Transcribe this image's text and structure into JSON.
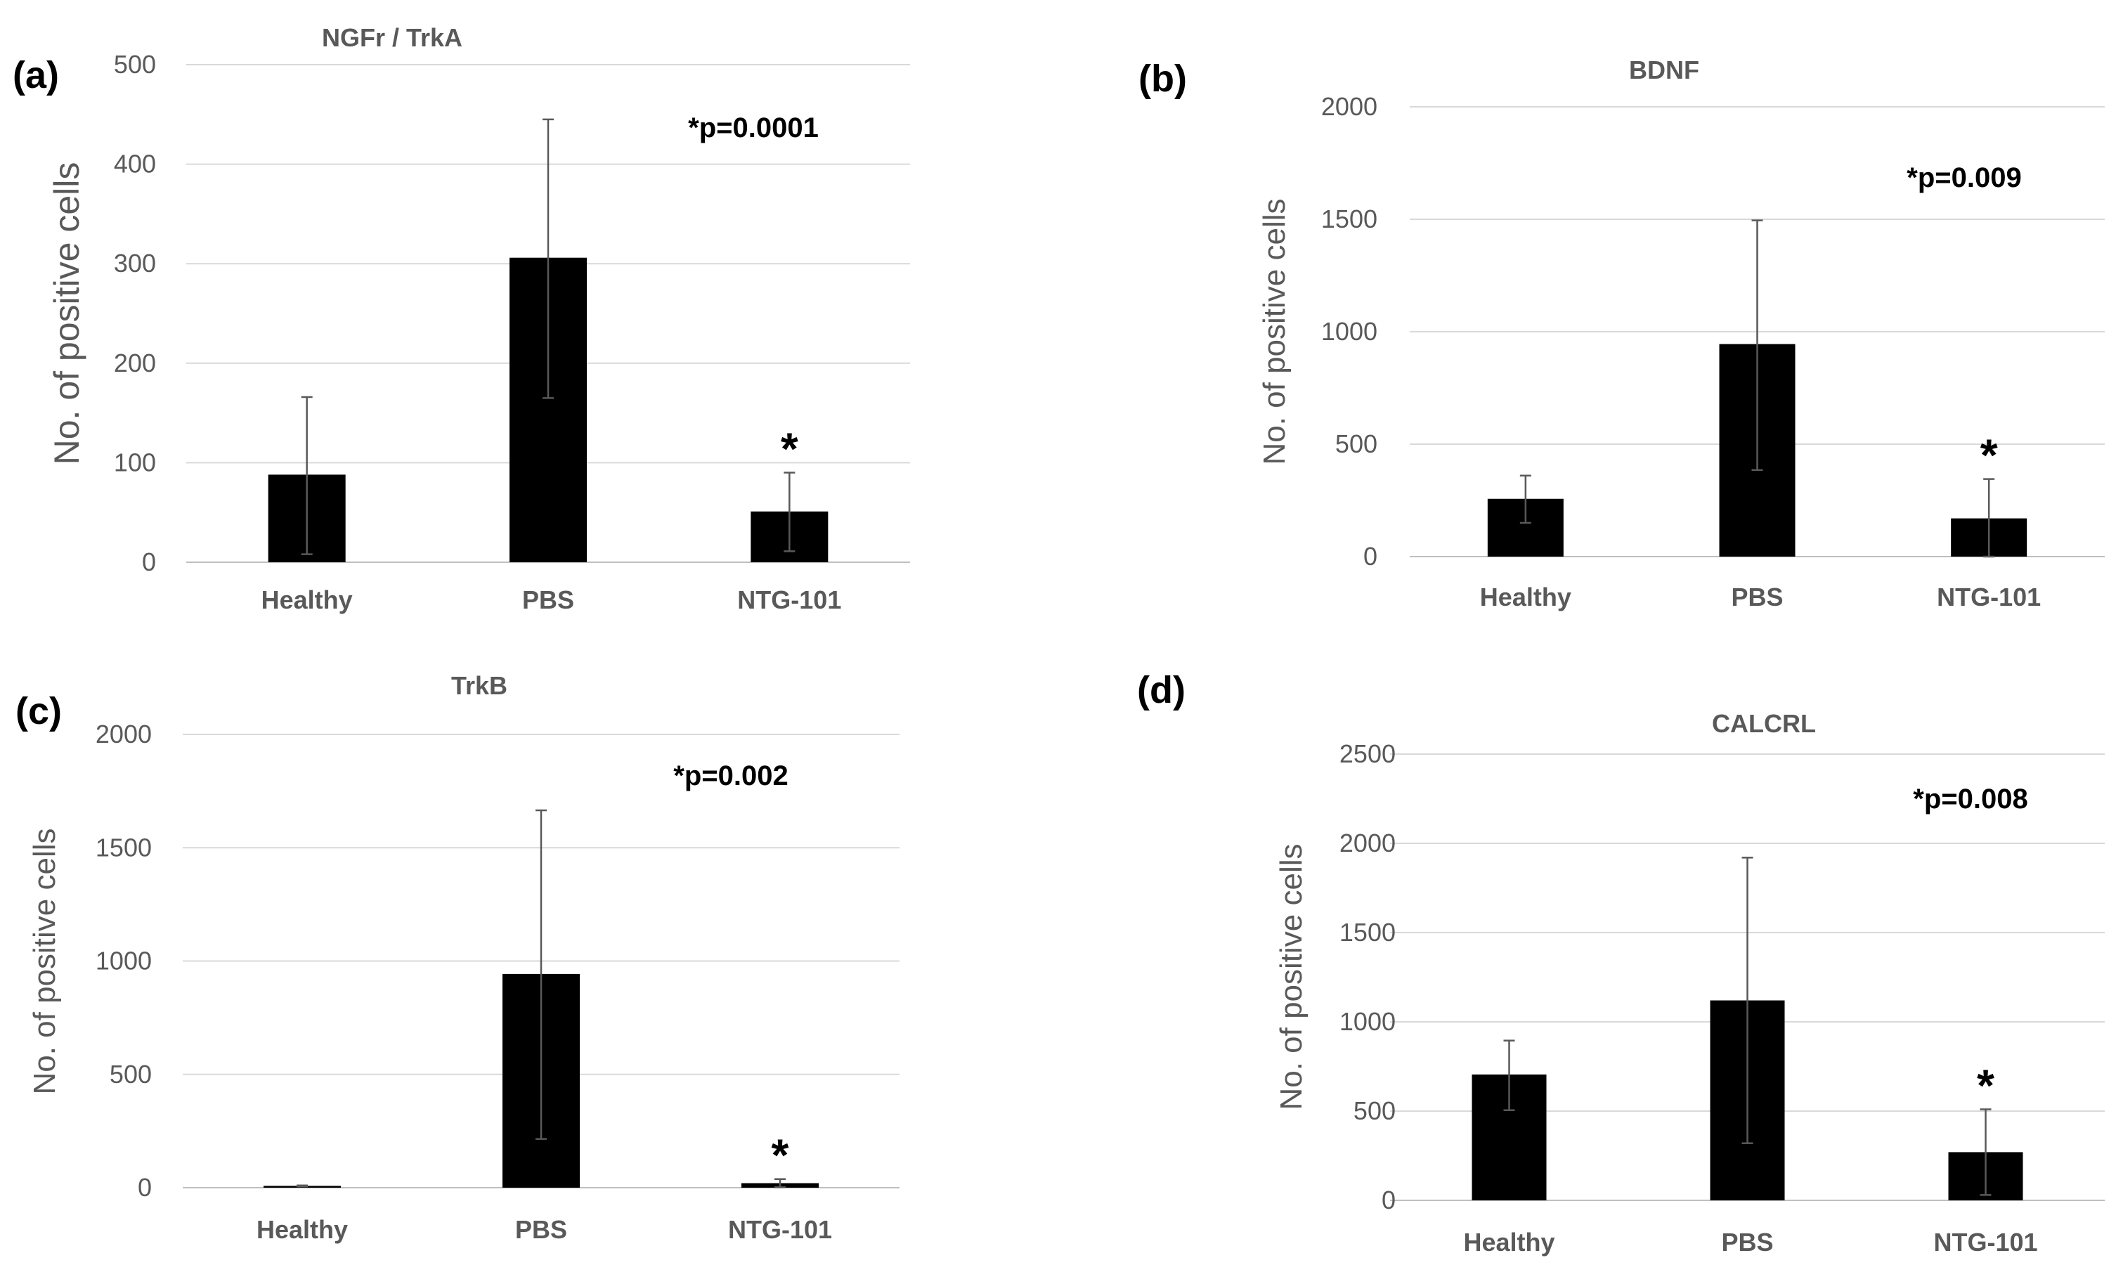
{
  "colors": {
    "bar": "#000000",
    "grid": "#d9d9d9",
    "text": "#595959",
    "error_bar": "#595959"
  },
  "chart_data": [
    {
      "panel": "(a)",
      "type": "bar",
      "title": "NGFr / TrkA",
      "ylabel": "No. of positive cells",
      "categories": [
        "Healthy",
        "PBS",
        "NTG-101"
      ],
      "values": [
        88,
        306,
        51
      ],
      "error_upper": [
        166,
        445,
        90
      ],
      "error_lower": [
        8,
        165,
        11
      ],
      "ylim": [
        0,
        500
      ],
      "yticks": [
        0,
        100,
        200,
        300,
        400,
        500
      ],
      "annotation": "*p=0.0001",
      "significance_marker": "*",
      "marked_category": "NTG-101"
    },
    {
      "panel": "(b)",
      "type": "bar",
      "title": "BDNF",
      "ylabel": "No. of positive cells",
      "categories": [
        "Healthy",
        "PBS",
        "NTG-101"
      ],
      "values": [
        257,
        945,
        170
      ],
      "error_upper": [
        360,
        1495,
        345
      ],
      "error_lower": [
        150,
        385,
        0
      ],
      "ylim": [
        0,
        2000
      ],
      "yticks": [
        0,
        500,
        1000,
        1500,
        2000
      ],
      "annotation": "*p=0.009",
      "significance_marker": "*",
      "marked_category": "NTG-101"
    },
    {
      "panel": "(c)",
      "type": "bar",
      "title": "TrkB",
      "ylabel": "No. of positive cells",
      "categories": [
        "Healthy",
        "PBS",
        "NTG-101"
      ],
      "values": [
        8,
        943,
        20
      ],
      "error_upper": [
        10,
        1665,
        38
      ],
      "error_lower": [
        6,
        215,
        2
      ],
      "ylim": [
        0,
        2000
      ],
      "yticks": [
        0,
        500,
        1000,
        1500,
        2000
      ],
      "annotation": "*p=0.002",
      "significance_marker": "*",
      "marked_category": "NTG-101"
    },
    {
      "panel": "(d)",
      "type": "bar",
      "title": "CALCRL",
      "ylabel": "No. of positive cells",
      "categories": [
        "Healthy",
        "PBS",
        "NTG-101"
      ],
      "values": [
        705,
        1120,
        270
      ],
      "error_upper": [
        895,
        1920,
        510
      ],
      "error_lower": [
        505,
        320,
        30
      ],
      "ylim": [
        0,
        2500
      ],
      "yticks": [
        0,
        500,
        1000,
        1500,
        2000,
        2500
      ],
      "annotation": "*p=0.008",
      "significance_marker": "*",
      "marked_category": "NTG-101"
    }
  ]
}
